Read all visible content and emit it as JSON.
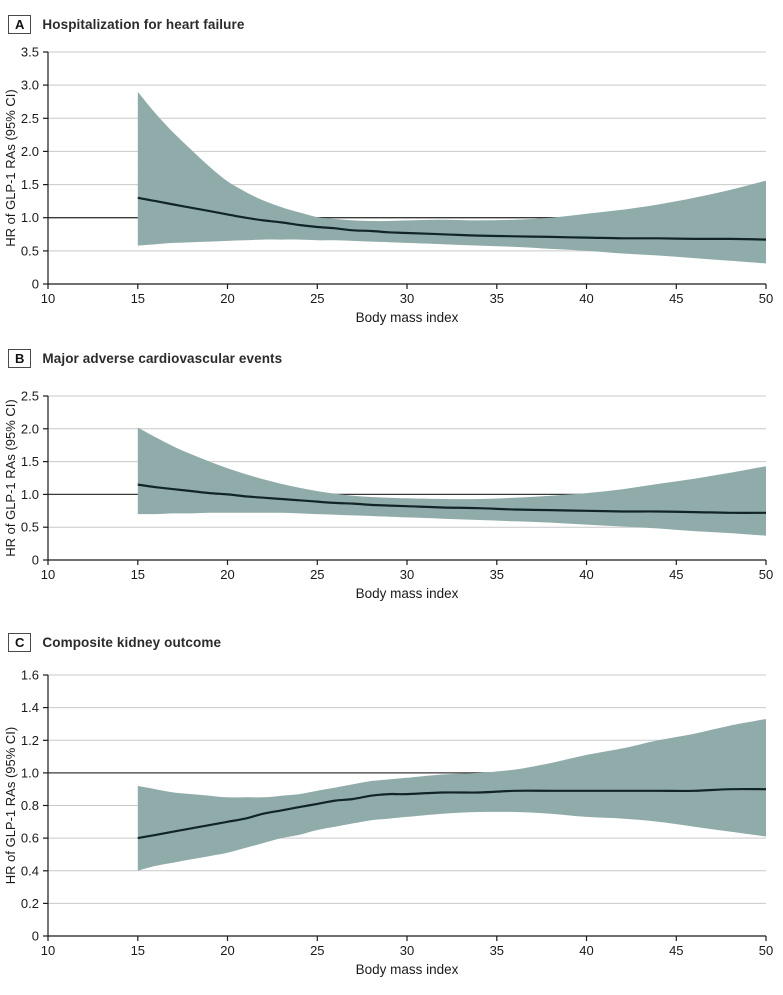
{
  "figure": {
    "x_axis_label": "Body mass index",
    "y_axis_label": "HR of GLP-1 RAs (95% CI)"
  },
  "colors": {
    "ci_band": "#90ACAA",
    "hr_curve": "#112526",
    "reference_line": "#3a3a3a",
    "gridline": "#c9c9c9",
    "axis": "#1a1a1a",
    "tick_text": "#1a1a1a"
  },
  "chart_data": [
    {
      "type": "area",
      "panel_label": "A",
      "title": "Hospitalization for heart failure",
      "xlabel": "Body mass index",
      "ylabel": "HR of GLP-1 RAs (95% CI)",
      "xlim": [
        10,
        50
      ],
      "ylim": [
        0,
        3.5
      ],
      "xticks": [
        10,
        15,
        20,
        25,
        30,
        35,
        40,
        45,
        50
      ],
      "yticks": [
        "0",
        "0.5",
        "1.0",
        "1.5",
        "2.0",
        "2.5",
        "3.0",
        "3.5"
      ],
      "reference_line": 1.0,
      "grid": true,
      "legend": "none",
      "x": [
        15,
        16,
        17,
        18,
        19,
        20,
        21,
        22,
        23,
        24,
        25,
        26,
        27,
        28,
        29,
        30,
        32,
        34,
        36,
        38,
        40,
        42,
        44,
        46,
        48,
        50
      ],
      "hr": [
        1.3,
        1.25,
        1.2,
        1.15,
        1.1,
        1.05,
        1.0,
        0.96,
        0.93,
        0.89,
        0.86,
        0.84,
        0.81,
        0.8,
        0.78,
        0.77,
        0.75,
        0.73,
        0.72,
        0.71,
        0.7,
        0.69,
        0.69,
        0.68,
        0.68,
        0.67
      ],
      "ci_upper": [
        2.9,
        2.57,
        2.28,
        2.02,
        1.77,
        1.55,
        1.39,
        1.26,
        1.16,
        1.08,
        1.01,
        0.98,
        0.96,
        0.95,
        0.95,
        0.96,
        0.97,
        0.96,
        0.97,
        1.0,
        1.06,
        1.12,
        1.2,
        1.3,
        1.42,
        1.56
      ],
      "ci_lower": [
        0.58,
        0.6,
        0.62,
        0.63,
        0.64,
        0.65,
        0.66,
        0.67,
        0.67,
        0.67,
        0.66,
        0.66,
        0.65,
        0.64,
        0.63,
        0.62,
        0.6,
        0.58,
        0.56,
        0.53,
        0.5,
        0.46,
        0.43,
        0.39,
        0.35,
        0.31
      ]
    },
    {
      "type": "area",
      "panel_label": "B",
      "title": "Major adverse cardiovascular events",
      "xlabel": "Body mass index",
      "ylabel": "HR of GLP-1 RAs (95% CI)",
      "xlim": [
        10,
        50
      ],
      "ylim": [
        0,
        2.5
      ],
      "xticks": [
        10,
        15,
        20,
        25,
        30,
        35,
        40,
        45,
        50
      ],
      "yticks": [
        "0",
        "0.5",
        "1.0",
        "1.5",
        "2.0",
        "2.5"
      ],
      "reference_line": 1.0,
      "grid": true,
      "legend": "none",
      "x": [
        15,
        16,
        17,
        18,
        19,
        20,
        21,
        22,
        23,
        24,
        25,
        26,
        27,
        28,
        29,
        30,
        32,
        34,
        36,
        38,
        40,
        42,
        44,
        46,
        48,
        50
      ],
      "hr": [
        1.15,
        1.11,
        1.08,
        1.05,
        1.02,
        1.0,
        0.97,
        0.95,
        0.93,
        0.91,
        0.89,
        0.87,
        0.86,
        0.84,
        0.83,
        0.82,
        0.8,
        0.79,
        0.77,
        0.76,
        0.75,
        0.74,
        0.74,
        0.73,
        0.72,
        0.72
      ],
      "ci_upper": [
        2.02,
        1.87,
        1.73,
        1.61,
        1.5,
        1.4,
        1.31,
        1.23,
        1.16,
        1.1,
        1.05,
        1.01,
        0.98,
        0.96,
        0.95,
        0.94,
        0.93,
        0.93,
        0.95,
        0.98,
        1.02,
        1.08,
        1.16,
        1.24,
        1.33,
        1.43
      ],
      "ci_lower": [
        0.7,
        0.7,
        0.71,
        0.71,
        0.72,
        0.72,
        0.72,
        0.72,
        0.72,
        0.71,
        0.7,
        0.69,
        0.68,
        0.67,
        0.66,
        0.65,
        0.63,
        0.61,
        0.59,
        0.57,
        0.54,
        0.51,
        0.48,
        0.44,
        0.41,
        0.37
      ]
    },
    {
      "type": "area",
      "panel_label": "C",
      "title": "Composite kidney outcome",
      "xlabel": "Body mass index",
      "ylabel": "HR of GLP-1 RAs (95% CI)",
      "xlim": [
        10,
        50
      ],
      "ylim": [
        0,
        1.6
      ],
      "xticks": [
        10,
        15,
        20,
        25,
        30,
        35,
        40,
        45,
        50
      ],
      "yticks": [
        "0",
        "0.2",
        "0.4",
        "0.6",
        "0.8",
        "1.0",
        "1.2",
        "1.4",
        "1.6"
      ],
      "reference_line": 1.0,
      "grid": true,
      "legend": "none",
      "x": [
        15,
        16,
        17,
        18,
        19,
        20,
        21,
        22,
        23,
        24,
        25,
        26,
        27,
        28,
        29,
        30,
        32,
        34,
        36,
        38,
        40,
        42,
        44,
        46,
        48,
        50
      ],
      "hr": [
        0.6,
        0.62,
        0.64,
        0.66,
        0.68,
        0.7,
        0.72,
        0.75,
        0.77,
        0.79,
        0.81,
        0.83,
        0.84,
        0.86,
        0.87,
        0.87,
        0.88,
        0.88,
        0.89,
        0.89,
        0.89,
        0.89,
        0.89,
        0.89,
        0.9,
        0.9
      ],
      "ci_upper": [
        0.92,
        0.9,
        0.88,
        0.87,
        0.86,
        0.85,
        0.85,
        0.85,
        0.86,
        0.87,
        0.89,
        0.91,
        0.93,
        0.95,
        0.96,
        0.97,
        0.99,
        1.0,
        1.02,
        1.06,
        1.11,
        1.15,
        1.2,
        1.24,
        1.29,
        1.33
      ],
      "ci_lower": [
        0.4,
        0.43,
        0.45,
        0.47,
        0.49,
        0.51,
        0.54,
        0.57,
        0.6,
        0.62,
        0.65,
        0.67,
        0.69,
        0.71,
        0.72,
        0.73,
        0.75,
        0.76,
        0.76,
        0.75,
        0.73,
        0.72,
        0.7,
        0.67,
        0.64,
        0.61
      ]
    }
  ]
}
